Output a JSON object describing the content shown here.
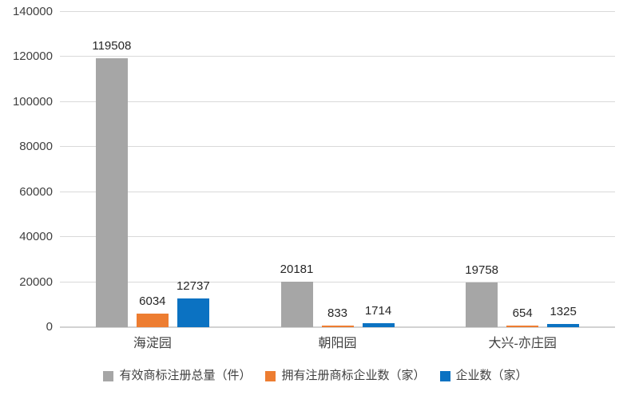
{
  "chart_data": {
    "type": "bar",
    "categories": [
      "海淀园",
      "朝阳园",
      "大兴-亦庄园"
    ],
    "series": [
      {
        "name": "有效商标注册总量（件）",
        "color": "#a6a6a6",
        "values": [
          119508,
          20181,
          19758
        ]
      },
      {
        "name": "拥有注册商标企业数（家）",
        "color": "#ed7d31",
        "values": [
          6034,
          833,
          654
        ]
      },
      {
        "name": "企业数（家）",
        "color": "#0b72c2",
        "values": [
          12737,
          1714,
          1325
        ]
      }
    ],
    "title": "",
    "xlabel": "",
    "ylabel": "",
    "ylim": [
      0,
      140000
    ],
    "ytick_step": 20000,
    "yticks": [
      "0",
      "20000",
      "40000",
      "60000",
      "80000",
      "100000",
      "120000",
      "140000"
    ],
    "grid": true,
    "legend_position": "bottom",
    "background_color": "#ffffff",
    "gridline_color": "#d9d9d9",
    "text_color": "#404040"
  }
}
